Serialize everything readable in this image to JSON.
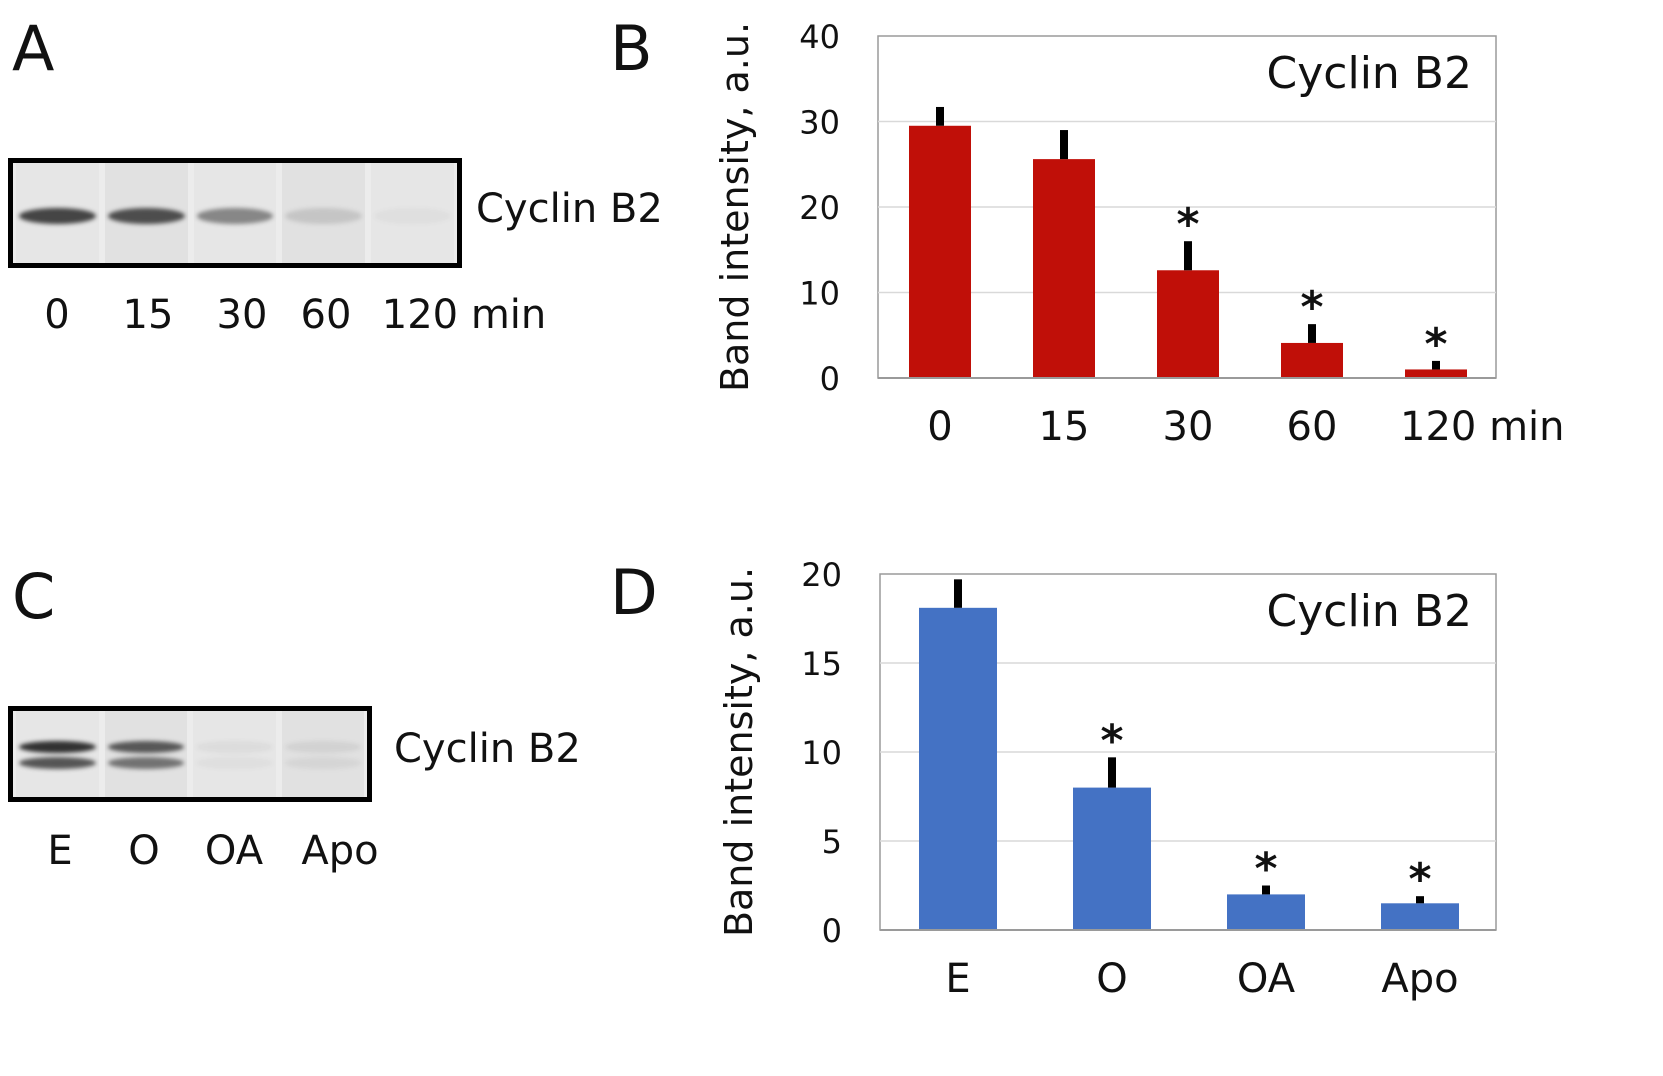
{
  "panels": {
    "A": {
      "letter": "A",
      "blot_label": "Cyclin B2",
      "lanes": [
        "0",
        "15",
        "30",
        "60",
        "120 min"
      ],
      "band_intensity": [
        0.85,
        0.8,
        0.5,
        0.15,
        0.03
      ]
    },
    "B": {
      "letter": "B"
    },
    "C": {
      "letter": "C",
      "blot_label": "Cyclin B2",
      "lanes": [
        "E",
        "O",
        "OA",
        "Apo"
      ],
      "band_intensity": [
        0.95,
        0.75,
        0.05,
        0.08
      ]
    },
    "D": {
      "letter": "D"
    }
  },
  "colors": {
    "bar_B": "#c00f08",
    "bar_D": "#4472c4",
    "error_bar": "#000000",
    "gridline": "#d9d9d9",
    "band": "#3a3a3a"
  },
  "chart_data": [
    {
      "panel": "B",
      "type": "bar",
      "title": "Cyclin B2",
      "xlabel": "",
      "ylabel": "Band intensity, a.u.",
      "categories": [
        "0",
        "15",
        "30",
        "60",
        "120 min"
      ],
      "values": [
        29.5,
        25.6,
        12.6,
        4.1,
        1.0
      ],
      "errors": [
        2.2,
        3.4,
        3.4,
        2.2,
        1.0
      ],
      "significance": [
        "",
        "",
        "*",
        "*",
        "*"
      ],
      "ylim": [
        0,
        40
      ],
      "yticks": [
        "0",
        "10",
        "20",
        "30",
        "40"
      ],
      "grid": true
    },
    {
      "panel": "D",
      "type": "bar",
      "title": "Cyclin B2",
      "xlabel": "",
      "ylabel": "Band intensity, a.u.",
      "categories": [
        "E",
        "O",
        "OA",
        "Apo"
      ],
      "values": [
        18.1,
        8.0,
        2.0,
        1.5
      ],
      "errors": [
        1.6,
        1.7,
        0.5,
        0.4
      ],
      "significance": [
        "",
        "*",
        "*",
        "*"
      ],
      "ylim": [
        0,
        20
      ],
      "yticks": [
        "0",
        "5",
        "10",
        "15",
        "20"
      ],
      "grid": true
    }
  ]
}
